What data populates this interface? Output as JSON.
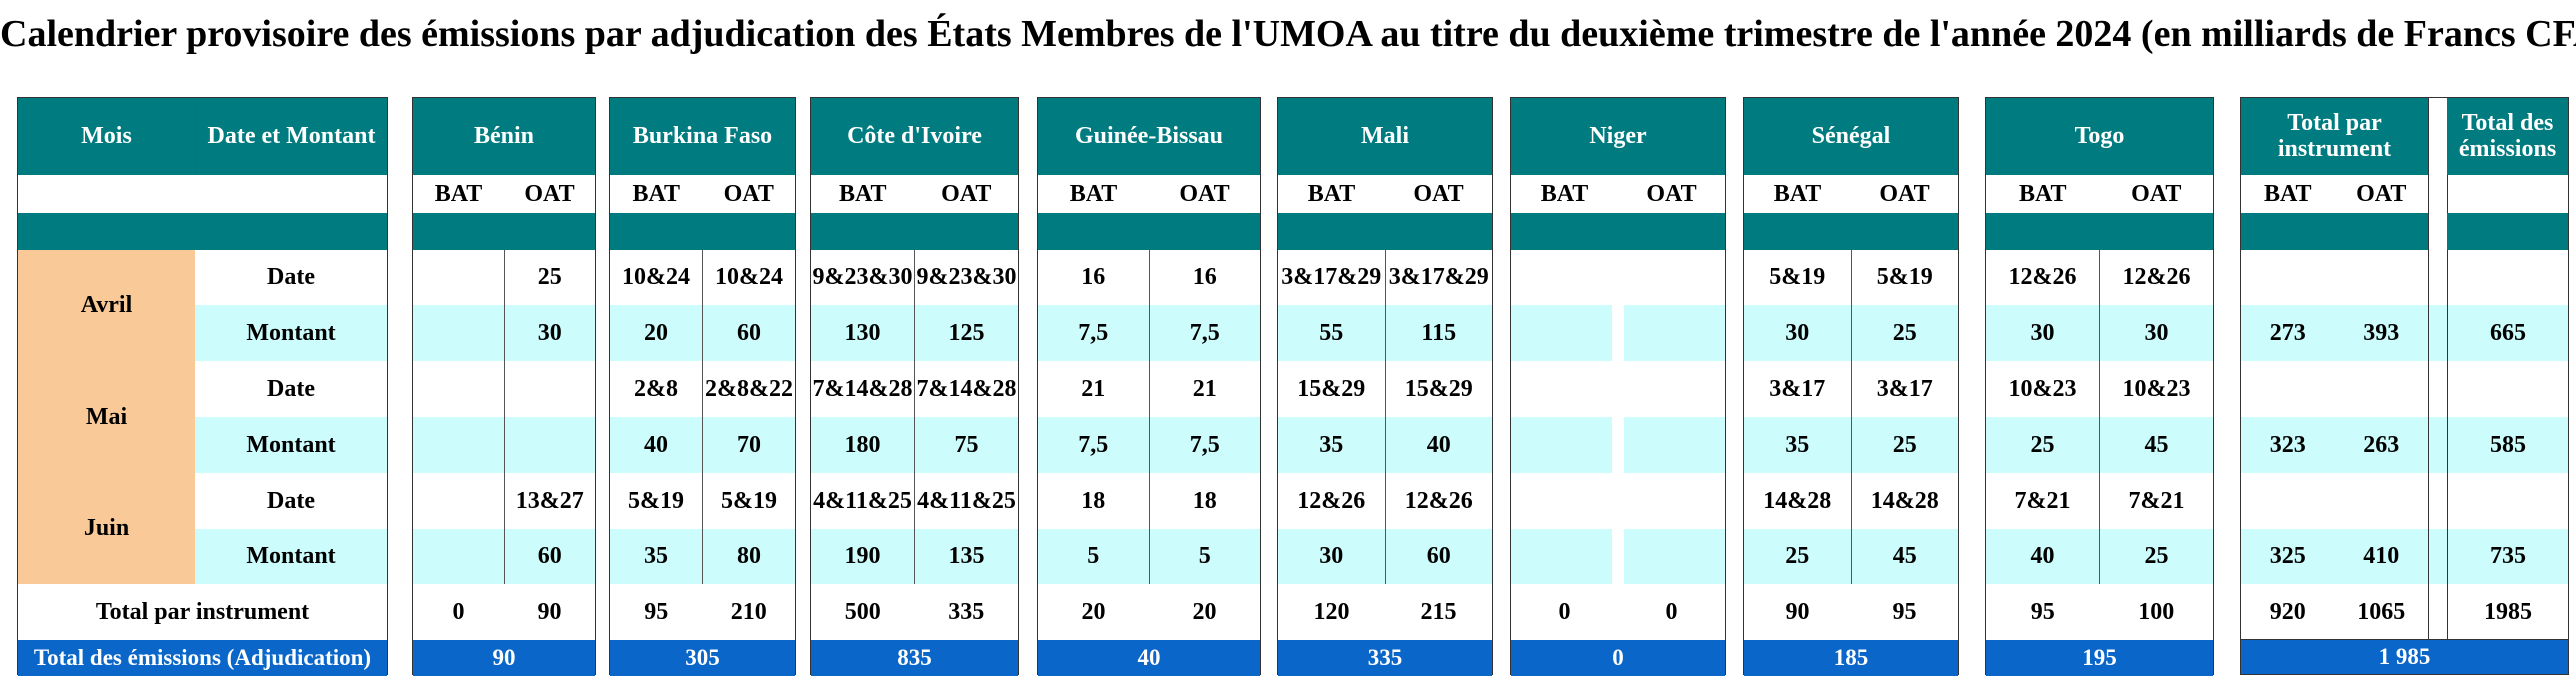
{
  "title": "Calendrier provisoire des émissions par adjudication des États Membres de l'UMOA au titre du deuxième trimestre de l'année 2024 (en milliards de Francs CFA)",
  "labels": {
    "mois": "Mois",
    "date_montant": "Date et Montant",
    "date": "Date",
    "montant": "Montant",
    "total_instrument": "Total par instrument",
    "total_emissions_adj": "Total des émissions (Adjudication)",
    "bat": "BAT",
    "oat": "OAT"
  },
  "months": [
    "Avril",
    "Mai",
    "Juin"
  ],
  "countries": [
    {
      "name": "Bénin",
      "rows": [
        [
          "",
          "25"
        ],
        [
          "",
          "30"
        ],
        [
          "",
          ""
        ],
        [
          "",
          ""
        ],
        [
          "",
          "13&27"
        ],
        [
          "",
          "60"
        ]
      ],
      "totals": [
        "0",
        "90"
      ],
      "grand": "90"
    },
    {
      "name": "Burkina Faso",
      "rows": [
        [
          "10&24",
          "10&24"
        ],
        [
          "20",
          "60"
        ],
        [
          "2&8",
          "2&8&22"
        ],
        [
          "40",
          "70"
        ],
        [
          "5&19",
          "5&19"
        ],
        [
          "35",
          "80"
        ]
      ],
      "totals": [
        "95",
        "210"
      ],
      "grand": "305"
    },
    {
      "name": "Côte d'Ivoire",
      "rows": [
        [
          "9&23&30",
          "9&23&30"
        ],
        [
          "130",
          "125"
        ],
        [
          "7&14&28",
          "7&14&28"
        ],
        [
          "180",
          "75"
        ],
        [
          "4&11&25",
          "4&11&25"
        ],
        [
          "190",
          "135"
        ]
      ],
      "totals": [
        "500",
        "335"
      ],
      "grand": "835"
    },
    {
      "name": "Guinée-Bissau",
      "rows": [
        [
          "16",
          "16"
        ],
        [
          "7,5",
          "7,5"
        ],
        [
          "21",
          "21"
        ],
        [
          "7,5",
          "7,5"
        ],
        [
          "18",
          "18"
        ],
        [
          "5",
          "5"
        ]
      ],
      "totals": [
        "20",
        "20"
      ],
      "grand": "40"
    },
    {
      "name": "Mali",
      "rows": [
        [
          "3&17&29",
          "3&17&29"
        ],
        [
          "55",
          "115"
        ],
        [
          "15&29",
          "15&29"
        ],
        [
          "35",
          "40"
        ],
        [
          "12&26",
          "12&26"
        ],
        [
          "30",
          "60"
        ]
      ],
      "totals": [
        "120",
        "215"
      ],
      "grand": "335"
    },
    {
      "name": "Niger",
      "rows": [
        [
          "",
          ""
        ],
        [
          "",
          ""
        ],
        [
          "",
          ""
        ],
        [
          "",
          ""
        ],
        [
          "",
          ""
        ],
        [
          "",
          ""
        ]
      ],
      "totals": [
        "0",
        "0"
      ],
      "grand": "0"
    },
    {
      "name": "Sénégal",
      "rows": [
        [
          "5&19",
          "5&19"
        ],
        [
          "30",
          "25"
        ],
        [
          "3&17",
          "3&17"
        ],
        [
          "35",
          "25"
        ],
        [
          "14&28",
          "14&28"
        ],
        [
          "25",
          "45"
        ]
      ],
      "totals": [
        "90",
        "95"
      ],
      "grand": "185"
    },
    {
      "name": "Togo",
      "rows": [
        [
          "12&26",
          "12&26"
        ],
        [
          "30",
          "30"
        ],
        [
          "10&23",
          "10&23"
        ],
        [
          "25",
          "45"
        ],
        [
          "7&21",
          "7&21"
        ],
        [
          "40",
          "25"
        ]
      ],
      "totals": [
        "95",
        "100"
      ],
      "grand": "195"
    }
  ],
  "total_par_instrument": {
    "title": "Total par instrument",
    "rows": [
      [
        "",
        ""
      ],
      [
        "273",
        "393"
      ],
      [
        "",
        ""
      ],
      [
        "323",
        "263"
      ],
      [
        "",
        ""
      ],
      [
        "325",
        "410"
      ]
    ],
    "totals": [
      "920",
      "1065"
    ]
  },
  "total_emissions": {
    "title": "Total des émissions",
    "rows": [
      "",
      "665",
      "",
      "585",
      "",
      "735"
    ],
    "total": "1985",
    "grand": "1 985"
  },
  "colors": {
    "header": "#007c80",
    "month": "#f9c998",
    "cyan": "#ccfcfc",
    "blue": "#0a66c8"
  }
}
